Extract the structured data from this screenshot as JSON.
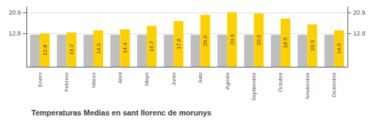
{
  "chart_data": {
    "type": "bar",
    "title": "Temperaturas Medias en sant llorenc de morunys",
    "categories": [
      "Enero",
      "Febrero",
      "Marzo",
      "Abril",
      "Mayo",
      "Junio",
      "Julio",
      "Agosto",
      "Septiembre",
      "Octubre",
      "Noviembre",
      "Diciembre"
    ],
    "series": [
      {
        "color": "#BEBEBE",
        "values": [
          12.3,
          12.3,
          12.3,
          12.3,
          12.3,
          12.3,
          12.3,
          12.3,
          12.3,
          12.3,
          12.3,
          12.3
        ]
      },
      {
        "color": "#FFD000",
        "values": [
          12.8,
          13.2,
          14.0,
          14.4,
          15.7,
          17.6,
          20.0,
          20.9,
          20.5,
          18.5,
          16.3,
          14.0
        ],
        "data_labels": true,
        "value_labels": [
          "12.8",
          "13.2",
          "14.0",
          "14.4",
          "15.7",
          "17.6",
          "20.0",
          "20.9",
          "20.5",
          "18.5",
          "16.3",
          "14.0"
        ]
      }
    ],
    "ylim": [
      0,
      23.0
    ],
    "yticks": [
      12.8,
      20.9
    ],
    "y2lim": [
      0,
      23.0
    ],
    "y2ticks": [
      12.8,
      20.9
    ],
    "grid": true
  }
}
